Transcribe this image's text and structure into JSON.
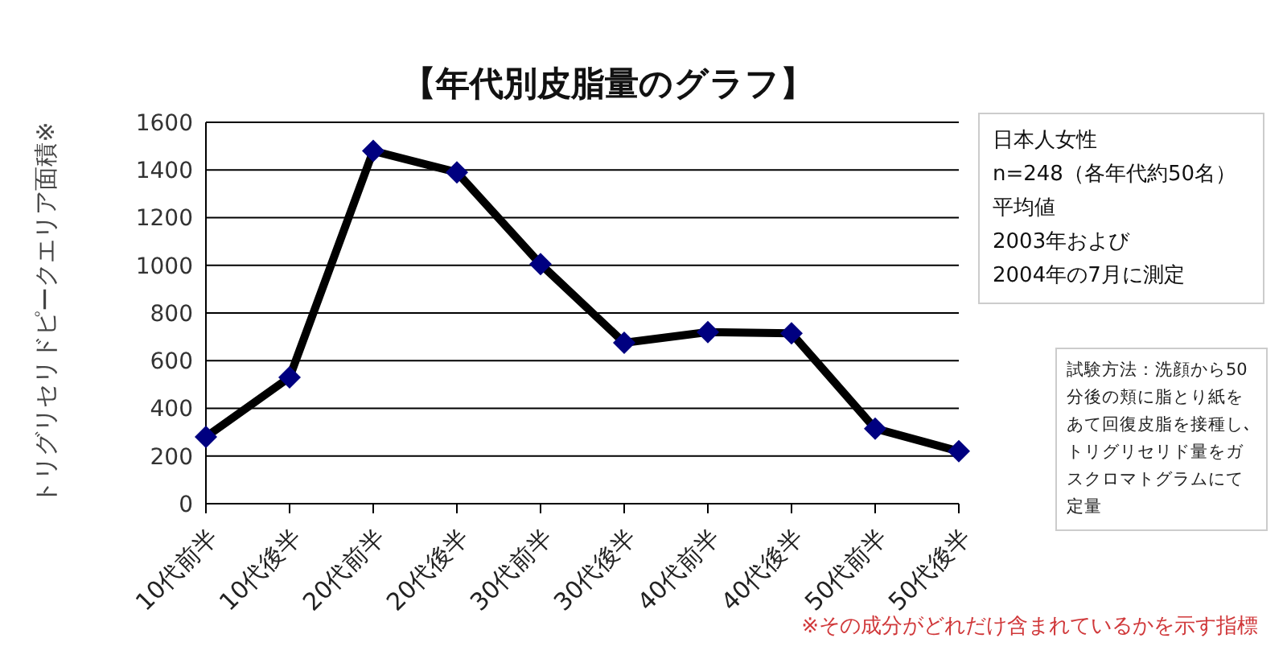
{
  "chart_data": {
    "type": "line",
    "title": "【年代別皮脂量のグラフ】",
    "ylabel": "トリグリセリドピークエリア面積※",
    "categories": [
      "10代前半",
      "10代後半",
      "20代前半",
      "20代後半",
      "30代前半",
      "30代後半",
      "40代前半",
      "40代後半",
      "50代前半",
      "50代後半"
    ],
    "series": [
      {
        "color": "#000000",
        "colors": [
          "#000080",
          "#000080",
          "#000080",
          "#000080",
          "#000080",
          "#000080",
          "#000080",
          "#000080",
          "#000080",
          "#000080"
        ],
        "values": [
          280,
          530,
          1480,
          1390,
          1005,
          675,
          720,
          715,
          315,
          220
        ]
      }
    ],
    "ylim": [
      0,
      1600
    ],
    "yticks": [
      0,
      200,
      400,
      600,
      800,
      1000,
      1200,
      1400,
      1600
    ],
    "grid": "y",
    "marker": "diamond",
    "annotations": [
      "日本人女性",
      "n=248（各年代約50名）",
      "平均値",
      "2003年および",
      "2004年の7月に測定",
      "試験方法：洗顔から50分後の頬に脂とり紙をあて回復皮脂を接種し､トリグリセリド量をガスクロマトグラムにて定量",
      "※その成分がどれだけ含まれているかを示す指標"
    ]
  }
}
